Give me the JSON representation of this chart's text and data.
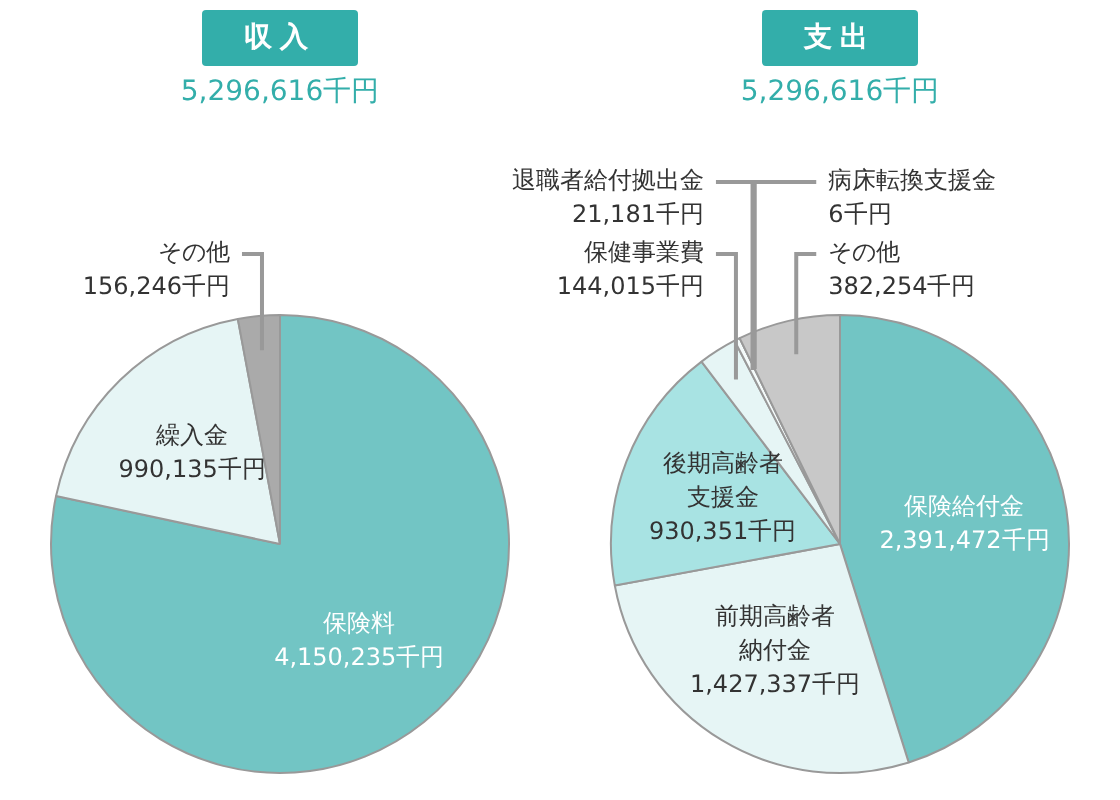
{
  "chart_data": [
    {
      "type": "pie",
      "title": "収入",
      "subtitle": "5,296,616千円",
      "categories": [
        "保険料",
        "繰入金",
        "その他"
      ],
      "values": [
        4150235,
        990135,
        156246
      ],
      "value_labels": [
        "4,150,235千円",
        "990,135千円",
        "156,246千円"
      ],
      "colors": [
        "#72c5c4",
        "#e6f5f5",
        "#aaaaaa"
      ],
      "legend": false
    },
    {
      "type": "pie",
      "title": "支出",
      "subtitle": "5,296,616千円",
      "categories": [
        "保険給付金",
        "前期高齢者納付金",
        "後期高齢者支援金",
        "保健事業費",
        "退職者給付拠出金",
        "病床転換支援金",
        "その他"
      ],
      "values": [
        2391472,
        1427337,
        930351,
        144015,
        21181,
        6,
        382254
      ],
      "value_labels": [
        "2,391,472千円",
        "1,427,337千円",
        "930,351千円",
        "144,015千円",
        "21,181千円",
        "6千円",
        "382,254千円"
      ],
      "colors": [
        "#72c5c4",
        "#e6f5f5",
        "#a8e3e3",
        "#e6f5f5",
        "#f4fafa",
        "#ffffff",
        "#c8c8c8"
      ],
      "legend": false
    }
  ]
}
